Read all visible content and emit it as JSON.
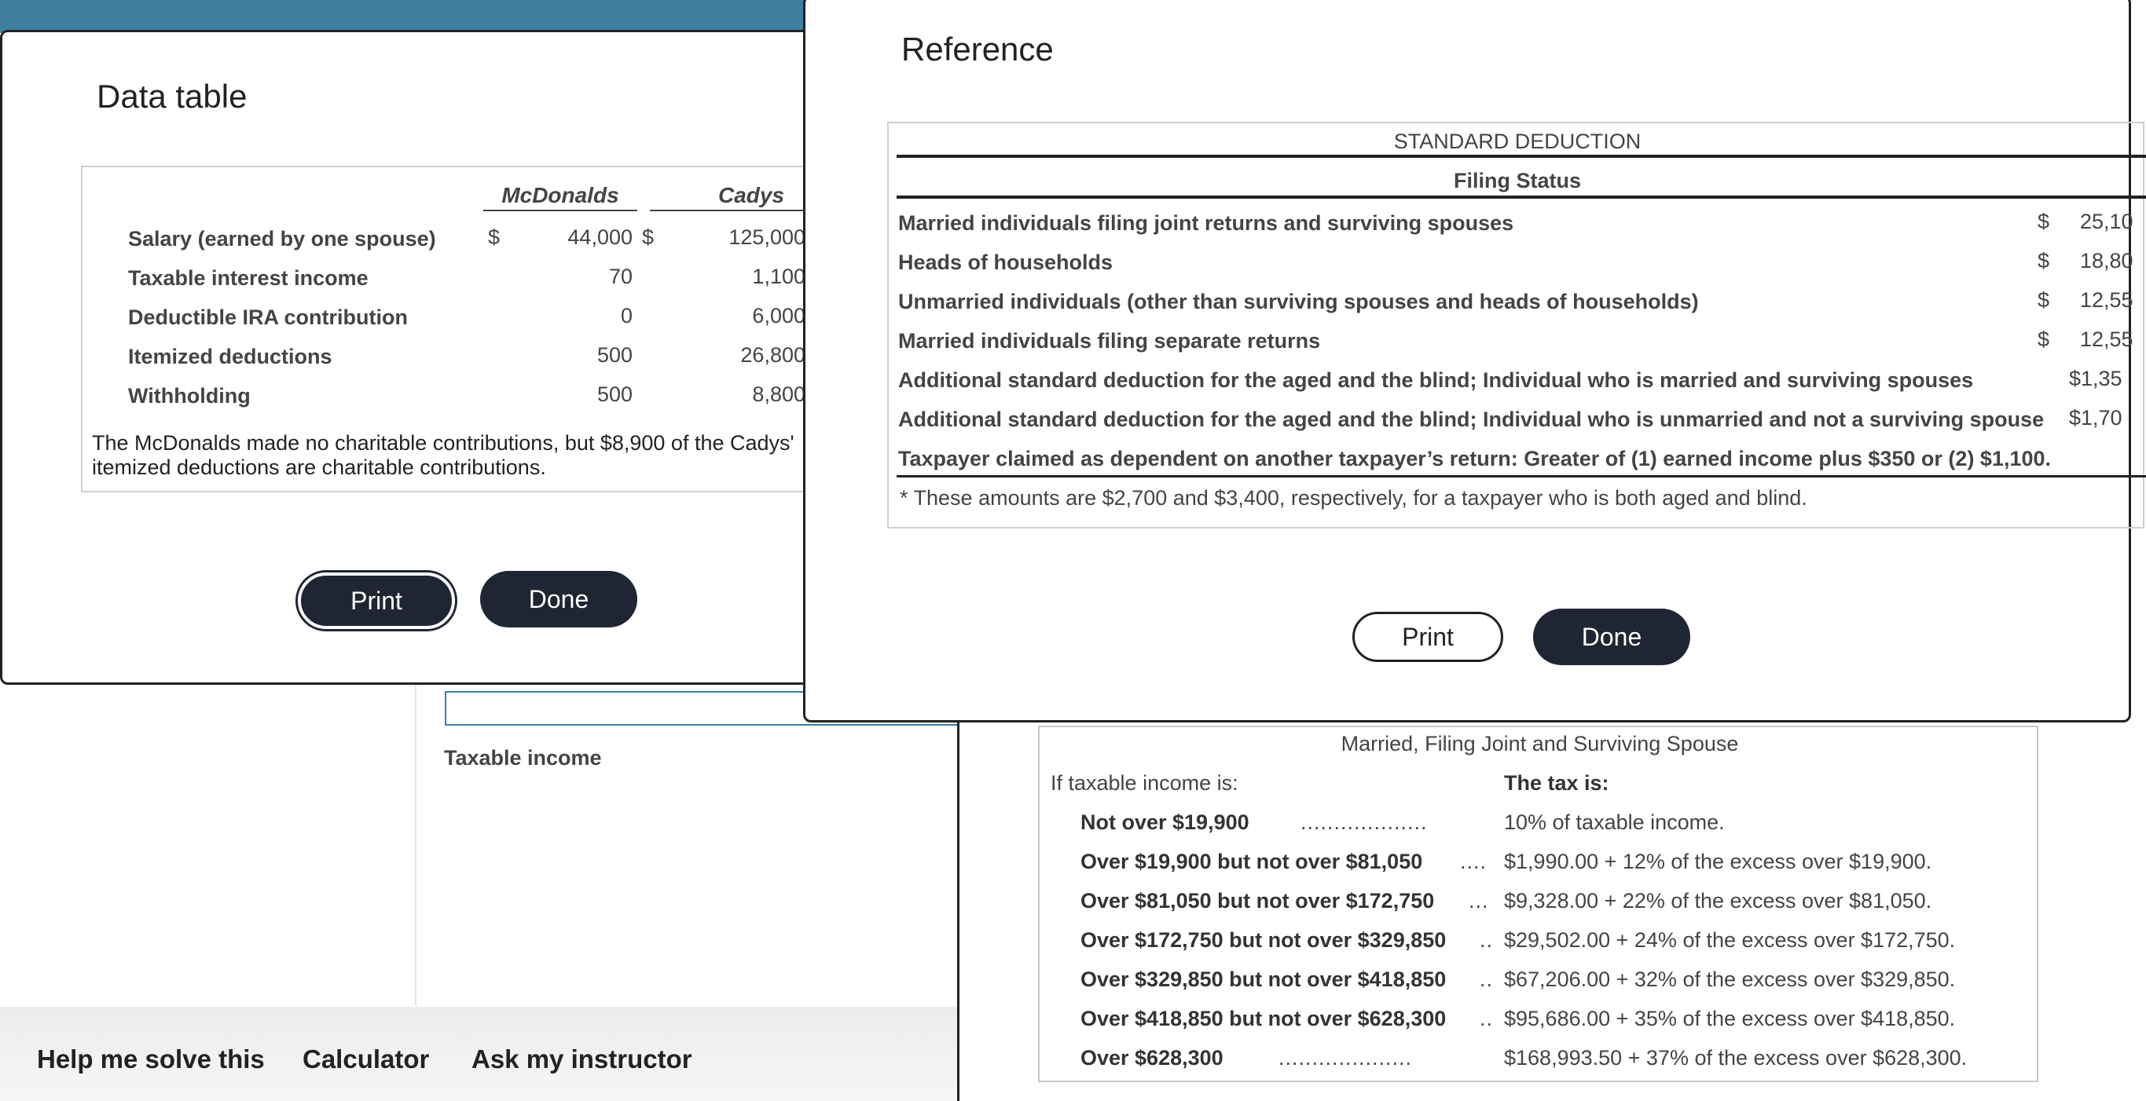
{
  "background": {
    "taxable_income_label": "Taxable income",
    "help_links": [
      "Help me solve this",
      "Calculator",
      "Ask my instructor"
    ]
  },
  "schedule": {
    "title": "Married, Filing Joint and Surviving Spouse",
    "if_label": "If taxable income is:",
    "tax_label": "The tax is:",
    "rows": [
      {
        "bracket": "Not over $19,900",
        "dots": "...................",
        "tax": "10% of taxable income."
      },
      {
        "bracket": "Over $19,900 but not over $81,050",
        "dots": "....",
        "tax": "$1,990.00 + 12% of the excess over $19,900."
      },
      {
        "bracket": "Over $81,050 but not over $172,750",
        "dots": "...",
        "tax": "$9,328.00 + 22% of the excess over $81,050."
      },
      {
        "bracket": "Over $172,750 but not over $329,850",
        "dots": "..",
        "tax": "$29,502.00 + 24% of the excess over $172,750."
      },
      {
        "bracket": "Over $329,850 but not over $418,850",
        "dots": "..",
        "tax": "$67,206.00 + 32% of the excess over $329,850."
      },
      {
        "bracket": "Over $418,850 but not over $628,300",
        "dots": "..",
        "tax": "$95,686.00 + 35% of the excess over $418,850."
      },
      {
        "bracket": "Over $628,300",
        "dots": "....................",
        "tax": "$168,993.50 + 37% of the excess over $628,300."
      }
    ]
  },
  "data_table": {
    "title": "Data table",
    "columns": [
      "McDonalds",
      "Cadys"
    ],
    "rows": [
      {
        "label": "Salary (earned by one spouse)",
        "mcd_prefix": "$",
        "mcd": "44,000",
        "cady_prefix": "$",
        "cady": "125,000"
      },
      {
        "label": "Taxable interest income",
        "mcd": "70",
        "cady": "1,100"
      },
      {
        "label": "Deductible IRA contribution",
        "mcd": "0",
        "cady": "6,000"
      },
      {
        "label": "Itemized deductions",
        "mcd": "500",
        "cady": "26,800"
      },
      {
        "label": "Withholding",
        "mcd": "500",
        "cady": "8,800"
      }
    ],
    "note": "The McDonalds made no charitable contributions, but $8,900 of the Cadys' itemized deductions are charitable contributions.",
    "print_label": "Print",
    "done_label": "Done"
  },
  "reference": {
    "title": "Reference",
    "table_title": "STANDARD DEDUCTION",
    "filing_status": "Filing Status",
    "rows": [
      {
        "label": "Married individuals filing joint returns and surviving spouses",
        "prefix": "$",
        "amount": "25,10"
      },
      {
        "label": "Heads of households",
        "prefix": "$",
        "amount": "18,80"
      },
      {
        "label": "Unmarried individuals (other than surviving spouses and heads of households)",
        "prefix": "$",
        "amount": "12,55"
      },
      {
        "label": "Married individuals filing separate returns",
        "prefix": "$",
        "amount": "12,55"
      },
      {
        "label": "Additional standard deduction for the aged and the blind; Individual who is married and surviving spouses",
        "prefix": "",
        "amount": "$1,35"
      },
      {
        "label": "Additional standard deduction for the aged and the blind; Individual who is unmarried and not a surviving spouse",
        "prefix": "",
        "amount": "$1,70"
      },
      {
        "label": "Taxpayer claimed as dependent on another taxpayer’s return: Greater of (1) earned income plus $350 or (2) $1,100.",
        "prefix": "",
        "amount": ""
      }
    ],
    "footnote": "* These amounts are $2,700 and $3,400, respectively, for a taxpayer who is both aged and blind.",
    "print_label": "Print",
    "done_label": "Done"
  }
}
